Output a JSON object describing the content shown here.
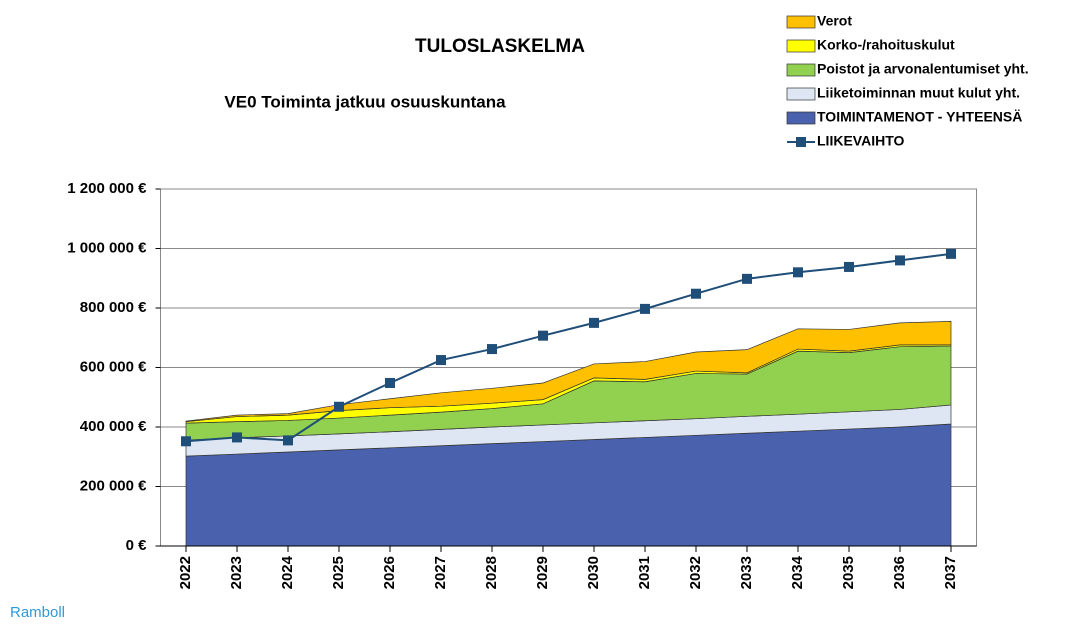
{
  "chart_data": {
    "type": "stacked-area-line",
    "title": "TULOSLASKELMA",
    "subtitle": "VE0 Toiminta jatkuu osuuskuntana",
    "source": "Ramboll",
    "categories": [
      "2022",
      "2023",
      "2024",
      "2025",
      "2026",
      "2027",
      "2028",
      "2029",
      "2030",
      "2031",
      "2032",
      "2033",
      "2034",
      "2035",
      "2036",
      "2037"
    ],
    "series": [
      {
        "name": "TOIMINTAMENOT - YHTEENSÄ",
        "color": "#4a62ad",
        "values": [
          302000,
          309000,
          316000,
          323000,
          330000,
          337000,
          344000,
          351000,
          358000,
          365000,
          372000,
          379000,
          386000,
          393000,
          400000,
          410000
        ]
      },
      {
        "name": "Liiketoiminnan muut kulut yht.",
        "color": "#dde6f2",
        "values": [
          54000,
          55000,
          54000,
          54000,
          54000,
          55000,
          56000,
          56000,
          56000,
          56000,
          56000,
          57000,
          57000,
          58000,
          59000,
          64000
        ]
      },
      {
        "name": "Poistot ja arvonalentumiset yht.",
        "color": "#92d050",
        "values": [
          57000,
          54000,
          52000,
          53000,
          56000,
          58000,
          62000,
          71000,
          141000,
          131000,
          152000,
          142000,
          212000,
          199000,
          211000,
          198000
        ]
      },
      {
        "name": "Korko-/rahoituskulut",
        "color": "#ffff00",
        "values": [
          5000,
          17000,
          18000,
          25000,
          25000,
          20000,
          18000,
          14000,
          10000,
          8000,
          8000,
          4000,
          7000,
          5000,
          6000,
          4000
        ]
      },
      {
        "name": "Verot",
        "color": "#ffc000",
        "values": [
          2000,
          5000,
          5000,
          20000,
          30000,
          45000,
          50000,
          56000,
          47000,
          60000,
          64000,
          78000,
          68000,
          73000,
          74000,
          79000
        ]
      },
      {
        "name": "LIIKEVAIHTO",
        "color": "#1f4e79",
        "type": "line",
        "values": [
          352000,
          365000,
          355000,
          468000,
          548000,
          625000,
          662000,
          707000,
          750000,
          797000,
          848000,
          898000,
          920000,
          938000,
          960000,
          982000
        ]
      }
    ],
    "ylim": [
      0,
      1200000
    ],
    "yticks": [
      {
        "value": 0,
        "label": "0 €"
      },
      {
        "value": 200000,
        "label": "200 000 €"
      },
      {
        "value": 400000,
        "label": "400 000 €"
      },
      {
        "value": 600000,
        "label": "600 000 €"
      },
      {
        "value": 800000,
        "label": "800 000 €"
      },
      {
        "value": 1000000,
        "label": "1 000 000 €"
      },
      {
        "value": 1200000,
        "label": "1 200 000 €"
      }
    ],
    "grid": true,
    "legend": "top-right"
  }
}
